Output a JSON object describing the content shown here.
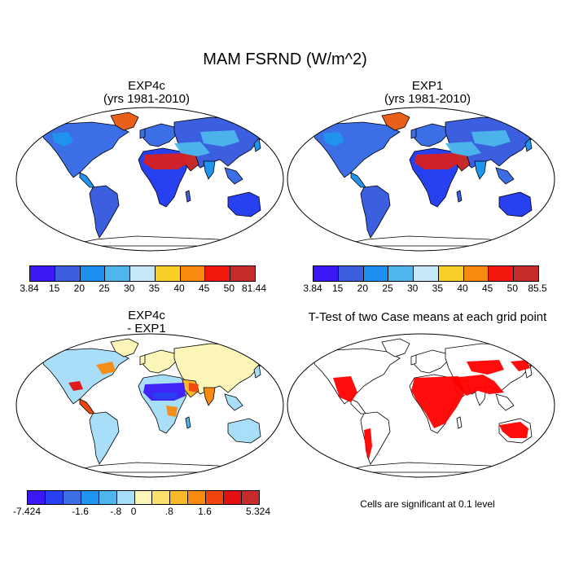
{
  "title": "MAM FSRND (W/m^2)",
  "panels": {
    "exp4c": {
      "title_line1": "EXP4c",
      "title_line2": "(yrs 1981-2010)",
      "colorbar": {
        "colors": [
          "#3b18f4",
          "#3c5fe0",
          "#1f8fef",
          "#4db6ec",
          "#c4e8f8",
          "#f9cf2a",
          "#f98a10",
          "#f2180d",
          "#c62b2b"
        ],
        "labels": [
          "3.84",
          "15",
          "20",
          "25",
          "30",
          "35",
          "40",
          "45",
          "50",
          "81.44"
        ]
      }
    },
    "exp1": {
      "title_line1": "EXP1",
      "title_line2": "(yrs 1981-2010)",
      "colorbar": {
        "colors": [
          "#3b18f4",
          "#3c5fe0",
          "#1f8fef",
          "#4db6ec",
          "#c4e8f8",
          "#f9cf2a",
          "#f98a10",
          "#f2180d",
          "#c62b2b"
        ],
        "labels": [
          "3.84",
          "15",
          "20",
          "25",
          "30",
          "35",
          "40",
          "45",
          "50",
          "85.5"
        ]
      }
    },
    "diff": {
      "title_line1": "EXP4c",
      "title_line2": "- EXP1",
      "colorbar": {
        "colors": [
          "#3b18f4",
          "#2741f0",
          "#3c6fe5",
          "#1f95ef",
          "#4db6ec",
          "#a9def8",
          "#fbf6b8",
          "#fbe06e",
          "#f9b72a",
          "#f98a10",
          "#f2450d",
          "#e40f10",
          "#c62b2b"
        ],
        "labels": [
          "-7.424",
          "-1.6",
          "-.8",
          "0",
          ".8",
          "1.6",
          "5.324"
        ]
      }
    },
    "ttest": {
      "title": "T-Test of two Case means at each grid point",
      "note": "Cells are significant at 0.1 level",
      "color": "#ff0000"
    }
  }
}
